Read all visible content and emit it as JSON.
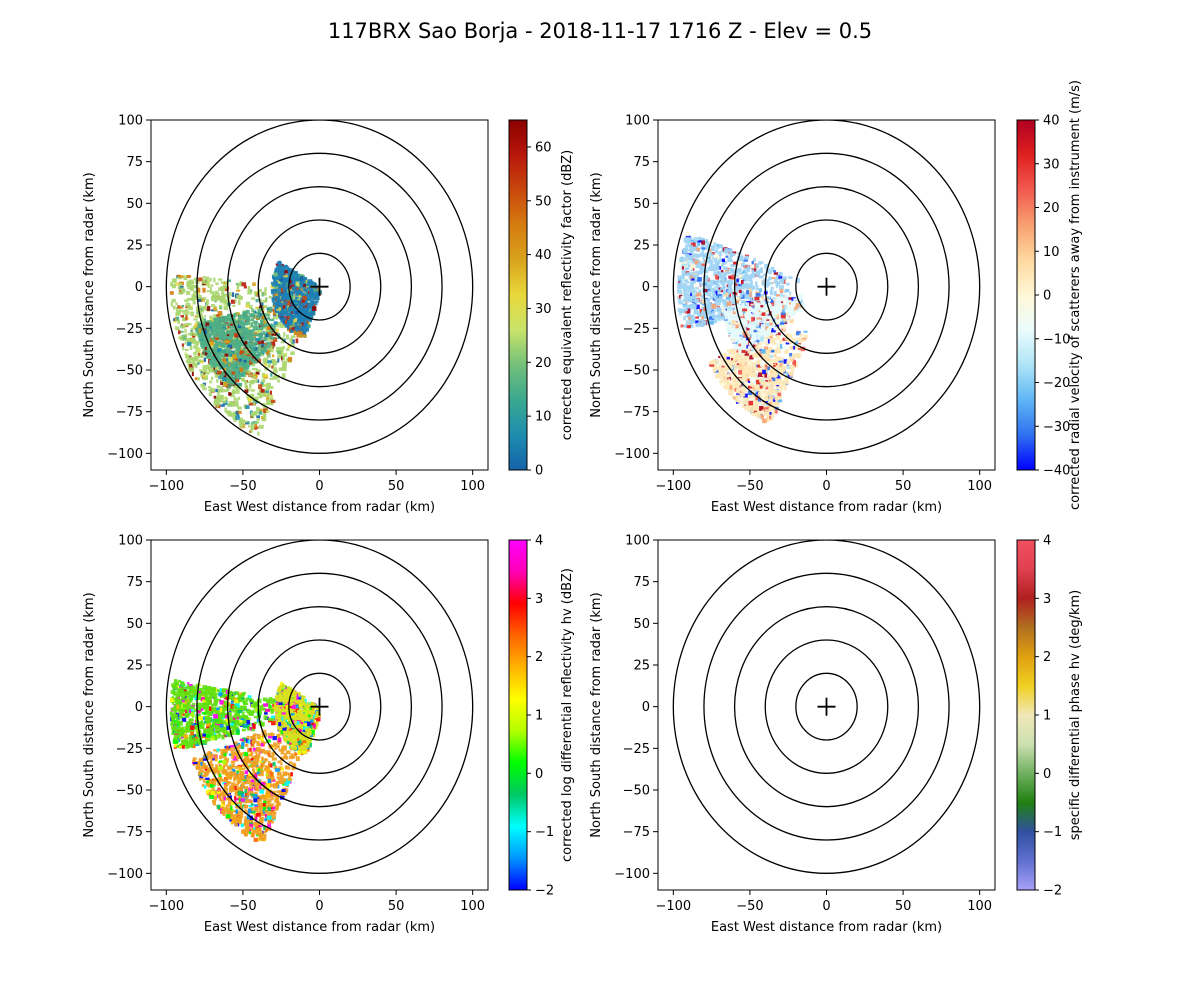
{
  "title": "117BRX Sao Borja - 2018-11-17 1716 Z -  Elev = 0.5",
  "chart_data": [
    {
      "type": "heatmap",
      "field": "reflectivity",
      "xlabel": "East West distance from radar (km)",
      "ylabel": "North South distance from radar (km)",
      "xlim": [
        -110,
        110
      ],
      "ylim": [
        -110,
        100
      ],
      "xticks": [
        -100,
        -50,
        0,
        50,
        100
      ],
      "yticks": [
        -100,
        -75,
        -50,
        -25,
        0,
        25,
        50,
        75,
        100
      ],
      "range_rings_km": [
        20,
        40,
        60,
        80,
        100
      ],
      "colorbar": {
        "label": "corrected equivalent reflectivity factor (dBZ)",
        "vmin": 0,
        "vmax": 65,
        "ticks": [
          0,
          10,
          20,
          30,
          40,
          50,
          60
        ],
        "colors": [
          "#1662a8",
          "#1d8db0",
          "#3aa88f",
          "#73c079",
          "#c8e46a",
          "#e8d83a",
          "#d9a31c",
          "#d57c10",
          "#c9480c",
          "#b8160b",
          "#8b0000"
        ]
      },
      "echo_regions": [
        {
          "name": "main-band",
          "az_start": 205,
          "az_end": 275,
          "r_min": 20,
          "r_max": 98,
          "color": "#a8d66e"
        },
        {
          "name": "core-band",
          "az_start": 225,
          "az_end": 255,
          "r_min": 35,
          "r_max": 85,
          "color": "#4fae86"
        },
        {
          "name": "near-clutter",
          "az_start": 200,
          "az_end": 300,
          "r_min": 2,
          "r_max": 32,
          "color": "#1f7fb4"
        }
      ]
    },
    {
      "type": "heatmap",
      "field": "velocity",
      "xlabel": "East West distance from radar (km)",
      "ylabel": "North South distance from radar (km)",
      "xlim": [
        -110,
        110
      ],
      "ylim": [
        -110,
        100
      ],
      "xticks": [
        -100,
        -50,
        0,
        50,
        100
      ],
      "yticks": [
        -100,
        -75,
        -50,
        -25,
        0,
        25,
        50,
        75,
        100
      ],
      "range_rings_km": [
        20,
        40,
        60,
        80,
        100
      ],
      "colorbar": {
        "label": "corrected radial velocity of scatterers away from instrument (m/s)",
        "vmin": -40,
        "vmax": 40,
        "ticks": [
          -40,
          -30,
          -20,
          -10,
          0,
          10,
          20,
          30,
          40
        ],
        "colors": [
          "#0000ff",
          "#3070f0",
          "#5fb6f5",
          "#aee4f6",
          "#eafcfc",
          "#fff7d6",
          "#ffd9a0",
          "#f7a070",
          "#f25a50",
          "#e02020",
          "#b00020"
        ]
      },
      "echo_regions": [
        {
          "name": "west-inbound",
          "az_start": 255,
          "az_end": 290,
          "r_min": 20,
          "r_max": 98,
          "color": "#9fd4f4"
        },
        {
          "name": "sw-outbound",
          "az_start": 205,
          "az_end": 240,
          "r_min": 30,
          "r_max": 90,
          "color": "#fde8b8"
        },
        {
          "name": "near-zero",
          "az_start": 235,
          "az_end": 260,
          "r_min": 15,
          "r_max": 70,
          "color": "#e6fbfb"
        }
      ]
    },
    {
      "type": "heatmap",
      "field": "differential_reflectivity",
      "xlabel": "East West distance from radar (km)",
      "ylabel": "North South distance from radar (km)",
      "xlim": [
        -110,
        110
      ],
      "ylim": [
        -110,
        100
      ],
      "xticks": [
        -100,
        -50,
        0,
        50,
        100
      ],
      "yticks": [
        -100,
        -75,
        -50,
        -25,
        0,
        25,
        50,
        75,
        100
      ],
      "range_rings_km": [
        20,
        40,
        60,
        80,
        100
      ],
      "colorbar": {
        "label": "corrected log differential reflectivity hv (dBZ)",
        "vmin": -2,
        "vmax": 4,
        "ticks": [
          -2,
          -1,
          0,
          1,
          2,
          3,
          4
        ],
        "colors": [
          "#0000ff",
          "#0096ff",
          "#00ffff",
          "#00c864",
          "#00ff00",
          "#b4ff00",
          "#ffff00",
          "#ffb400",
          "#ff6400",
          "#ff0000",
          "#ff00b4",
          "#ff00ff"
        ]
      },
      "echo_regions": [
        {
          "name": "west-green",
          "az_start": 255,
          "az_end": 280,
          "r_min": 20,
          "r_max": 98,
          "color": "#60e010"
        },
        {
          "name": "sw-orange",
          "az_start": 205,
          "az_end": 250,
          "r_min": 25,
          "r_max": 90,
          "color": "#f0a020"
        },
        {
          "name": "near-mixed",
          "az_start": 200,
          "az_end": 300,
          "r_min": 2,
          "r_max": 30,
          "color": "#d8e020"
        }
      ]
    },
    {
      "type": "heatmap",
      "field": "specific_differential_phase",
      "xlabel": "East West distance from radar (km)",
      "ylabel": "North South distance from radar (km)",
      "xlim": [
        -110,
        110
      ],
      "ylim": [
        -110,
        100
      ],
      "xticks": [
        -100,
        -50,
        0,
        50,
        100
      ],
      "yticks": [
        -100,
        -75,
        -50,
        -25,
        0,
        25,
        50,
        75,
        100
      ],
      "range_rings_km": [
        20,
        40,
        60,
        80,
        100
      ],
      "colorbar": {
        "label": "specific differential phase hv (deg/km)",
        "vmin": -2,
        "vmax": 4,
        "ticks": [
          -2,
          -1,
          0,
          1,
          2,
          3,
          4
        ],
        "colors": [
          "#a8a0f8",
          "#6070d0",
          "#3050a0",
          "#208010",
          "#70b060",
          "#cce0b0",
          "#f0e8b8",
          "#f0d020",
          "#e0a010",
          "#b07020",
          "#b02020",
          "#e04050",
          "#f05060"
        ]
      },
      "echo_regions": []
    }
  ]
}
